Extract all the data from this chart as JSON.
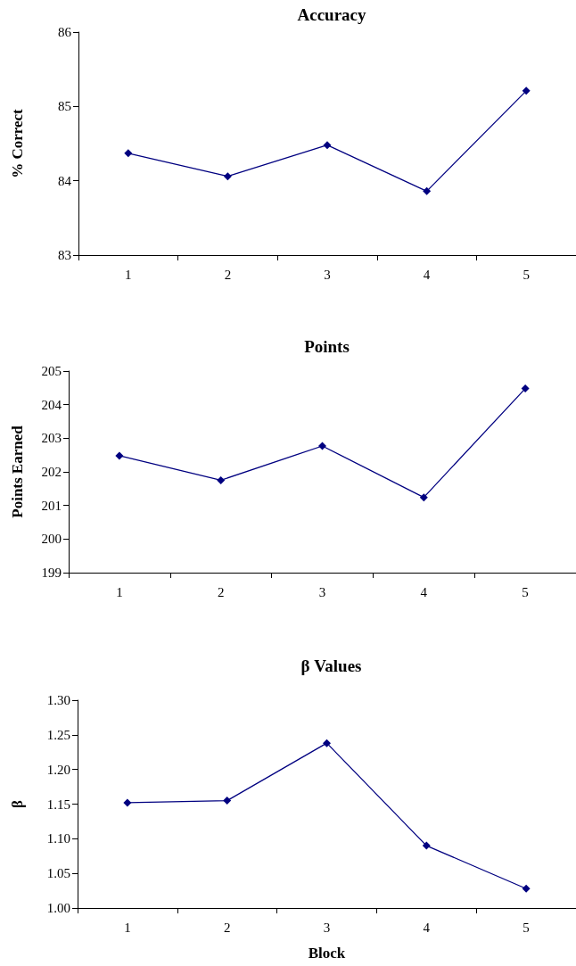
{
  "chart_data": [
    {
      "type": "line",
      "title": "Accuracy",
      "ylabel": "% Correct",
      "categories": [
        "1",
        "2",
        "3",
        "4",
        "5"
      ],
      "series": [
        {
          "color": "#000080",
          "values": [
            84.37,
            84.06,
            84.48,
            83.86,
            85.21
          ]
        }
      ],
      "ylim": [
        83,
        86
      ],
      "yticks": [
        83,
        84,
        85,
        86
      ],
      "grid": false,
      "marker": "diamond"
    },
    {
      "type": "line",
      "title": "Points",
      "ylabel": "Points Earned",
      "categories": [
        "1",
        "2",
        "3",
        "4",
        "5"
      ],
      "series": [
        {
          "color": "#000080",
          "values": [
            202.48,
            201.75,
            202.77,
            201.24,
            204.48
          ]
        }
      ],
      "ylim": [
        199,
        205
      ],
      "yticks": [
        199,
        200,
        201,
        202,
        203,
        204,
        205
      ],
      "grid": false,
      "marker": "diamond"
    },
    {
      "type": "line",
      "title": "β Values",
      "ylabel": "β",
      "xlabel": "Block",
      "categories": [
        "1",
        "2",
        "3",
        "4",
        "5"
      ],
      "series": [
        {
          "color": "#000080",
          "values": [
            1.152,
            1.155,
            1.238,
            1.09,
            1.028
          ]
        }
      ],
      "ylim": [
        1,
        1.3
      ],
      "yticks": [
        {
          "value": 1,
          "label": "1.00"
        },
        {
          "value": 1.05,
          "label": "1.05"
        },
        {
          "value": 1.1,
          "label": "1.10"
        },
        {
          "value": 1.15,
          "label": "1.15"
        },
        {
          "value": 1.2,
          "label": "1.20"
        },
        {
          "value": 1.25,
          "label": "1.25"
        },
        {
          "value": 1.3,
          "label": "1.30"
        }
      ],
      "grid": false,
      "marker": "diamond"
    }
  ]
}
